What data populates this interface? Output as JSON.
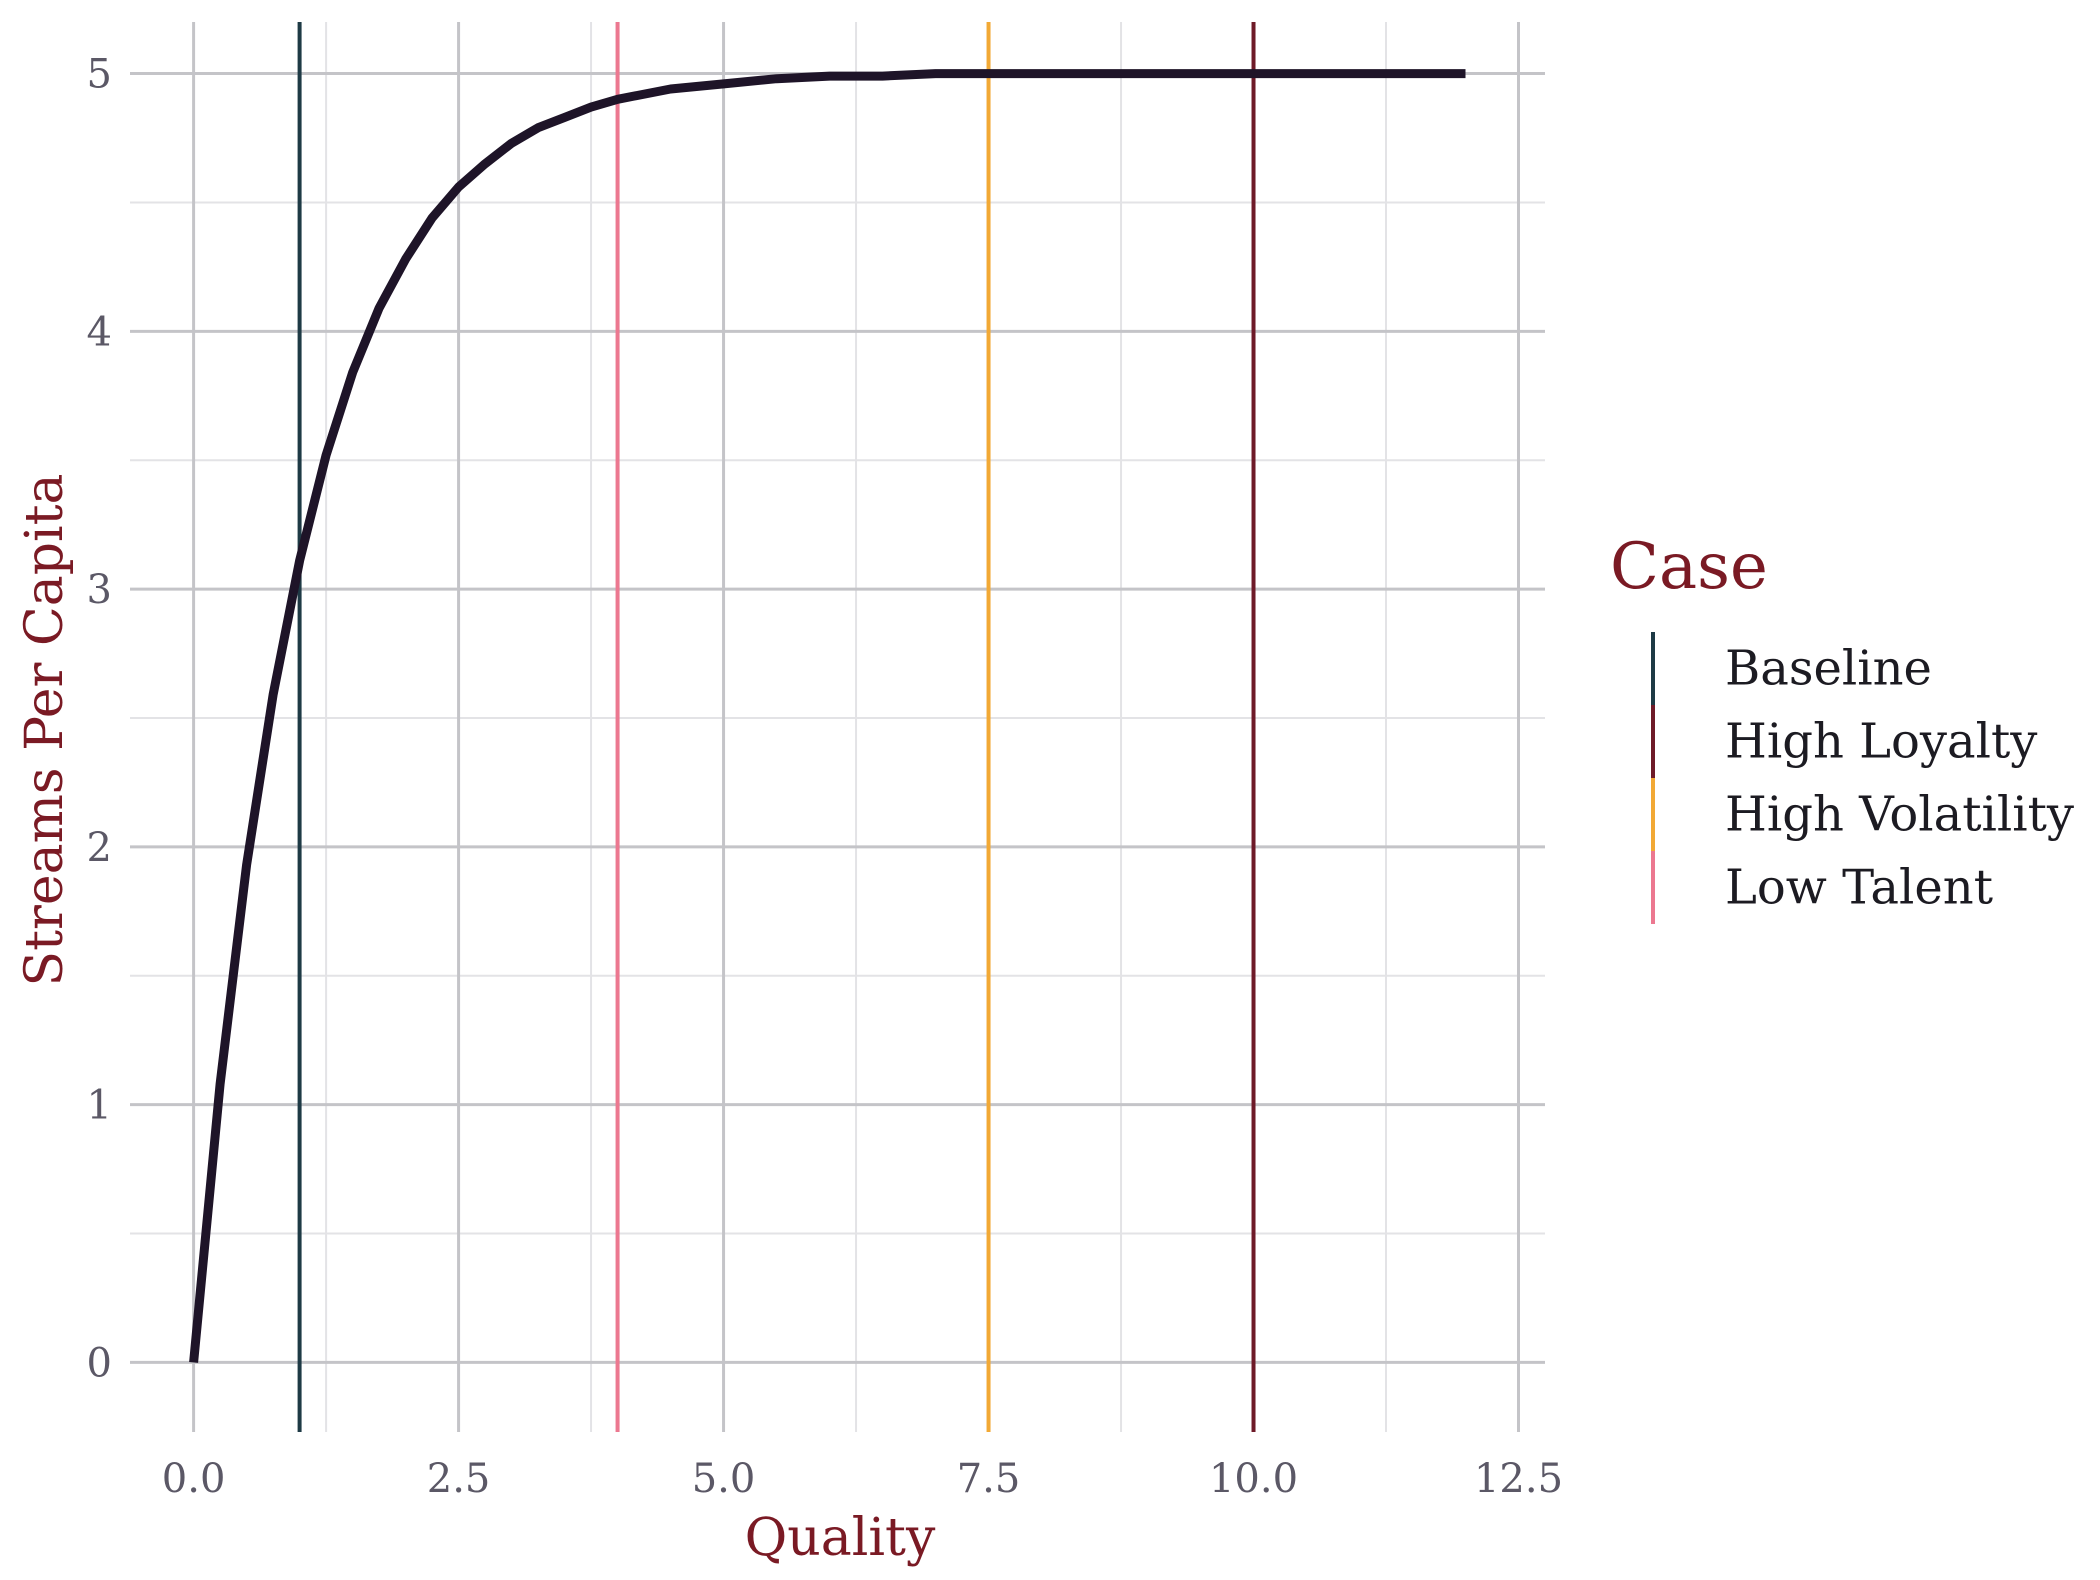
{
  "chart_data": {
    "type": "line",
    "xlabel": "Quality",
    "ylabel": "Streams Per Capita",
    "xlim": [
      -0.6,
      12.75
    ],
    "ylim": [
      -0.27,
      5.2
    ],
    "x_ticks": [
      0.0,
      2.5,
      5.0,
      7.5,
      10.0,
      12.5
    ],
    "x_tick_labels": [
      "0.0",
      "2.5",
      "5.0",
      "7.5",
      "10.0",
      "12.5"
    ],
    "y_ticks": [
      0,
      1,
      2,
      3,
      4,
      5
    ],
    "y_tick_labels": [
      "0",
      "1",
      "2",
      "3",
      "4",
      "5"
    ],
    "x_minor_ticks": [
      1.25,
      3.75,
      6.25,
      8.75,
      11.25
    ],
    "y_minor_ticks": [
      0.5,
      1.5,
      2.5,
      3.5,
      4.5
    ],
    "grid": true,
    "series": [
      {
        "color": "#1e1428",
        "x": [
          0,
          0.25,
          0.5,
          0.75,
          1.0,
          1.25,
          1.5,
          1.75,
          2.0,
          2.25,
          2.5,
          2.75,
          3.0,
          3.25,
          3.5,
          3.75,
          4.0,
          4.5,
          5.0,
          5.5,
          6.0,
          6.5,
          7.0,
          7.5,
          8.0,
          8.5,
          9.0,
          9.5,
          10.0,
          10.5,
          11.0,
          11.5,
          12.0
        ],
        "y": [
          0,
          1.08,
          1.93,
          2.59,
          3.11,
          3.52,
          3.84,
          4.09,
          4.28,
          4.44,
          4.56,
          4.65,
          4.73,
          4.79,
          4.83,
          4.87,
          4.9,
          4.94,
          4.96,
          4.98,
          4.99,
          4.99,
          5.0,
          5.0,
          5.0,
          5.0,
          5.0,
          5.0,
          5.0,
          5.0,
          5.0,
          5.0,
          5.0
        ]
      }
    ],
    "vlines": [
      {
        "name": "Baseline",
        "x": 1.0,
        "color": "#1e3a45"
      },
      {
        "name": "High Loyalty",
        "x": 10.0,
        "color": "#6e1a28"
      },
      {
        "name": "High Volatility",
        "x": 7.5,
        "color": "#f2a935"
      },
      {
        "name": "Low Talent",
        "x": 4.0,
        "color": "#ec7890"
      }
    ],
    "legend": {
      "title": "Case",
      "position": "right",
      "items": [
        "Baseline",
        "High Loyalty",
        "High Volatility",
        "Low Talent"
      ],
      "colors": [
        "#1e3a45",
        "#6e1a28",
        "#f2a935",
        "#ec7890"
      ]
    }
  }
}
